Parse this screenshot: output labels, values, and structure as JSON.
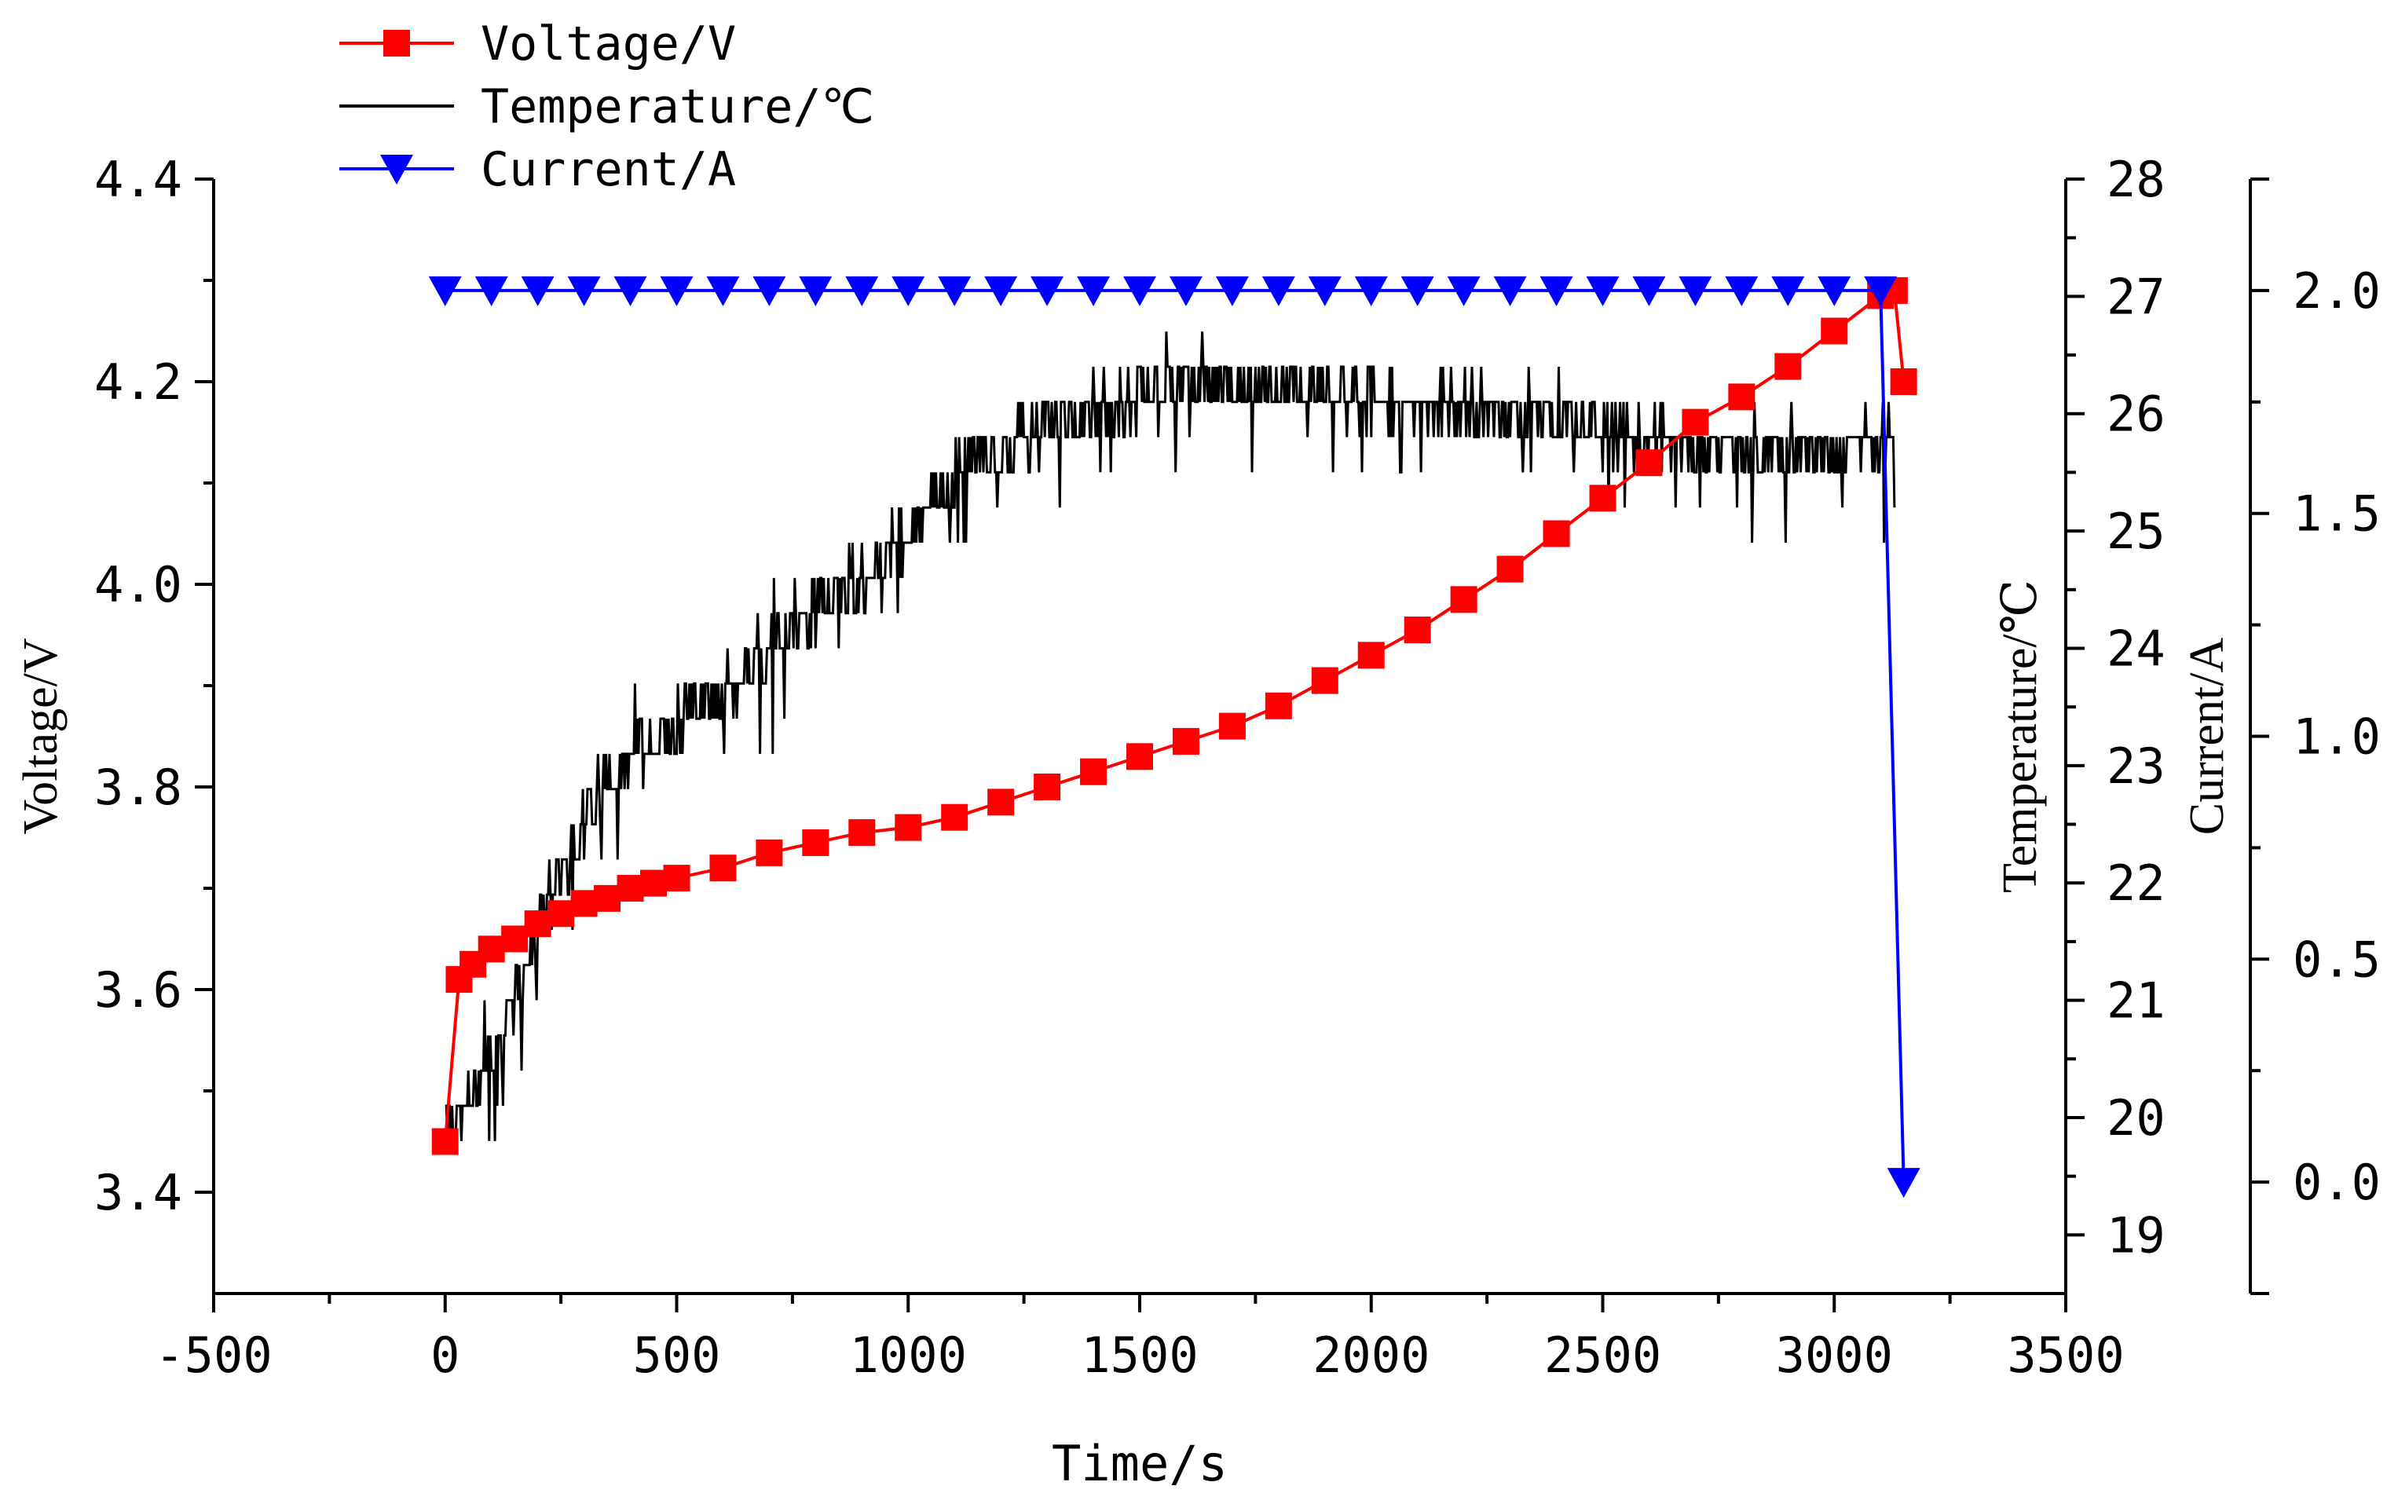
{
  "chart_data": {
    "type": "line",
    "title": "",
    "xlabel": "Time/s",
    "xlim": [
      -500,
      3500
    ],
    "x_ticks": [
      -500,
      0,
      500,
      1000,
      1500,
      2000,
      2500,
      3000,
      3500
    ],
    "x_tick_labels": [
      "-500",
      "0",
      "500",
      "1000",
      "1500",
      "2000",
      "2500",
      "3000",
      "3500"
    ],
    "axes": {
      "voltage": {
        "label": "Voltage/V",
        "side": "left",
        "lim": [
          3.3,
          4.4
        ],
        "ticks": [
          3.4,
          3.6,
          3.8,
          4.0,
          4.2,
          4.4
        ],
        "tick_labels": [
          "3.4",
          "3.6",
          "3.8",
          "4.0",
          "4.2",
          "4.4"
        ]
      },
      "temperature": {
        "label": "Temperature/℃",
        "side": "right-inner",
        "lim": [
          18.5,
          28
        ],
        "ticks": [
          19,
          20,
          21,
          22,
          23,
          24,
          25,
          26,
          27,
          28
        ],
        "tick_labels": [
          "19",
          "20",
          "21",
          "22",
          "23",
          "24",
          "25",
          "26",
          "27",
          "28"
        ]
      },
      "current": {
        "label": "Current/A",
        "side": "right-outer",
        "lim": [
          -0.25,
          2.25
        ],
        "ticks": [
          0.0,
          0.5,
          1.0,
          1.5,
          2.0
        ],
        "tick_labels": [
          "0.0",
          "0.5",
          "1.0",
          "1.5",
          "2.0"
        ]
      }
    },
    "legend": {
      "position": "top-left",
      "entries": [
        "Voltage/V",
        "Temperature/℃",
        "Current/A"
      ]
    },
    "series": [
      {
        "name": "Voltage/V",
        "axis": "voltage",
        "color": "#ff0000",
        "marker": "square",
        "x": [
          0,
          30,
          60,
          100,
          150,
          200,
          250,
          300,
          350,
          400,
          450,
          500,
          600,
          700,
          800,
          900,
          1000,
          1100,
          1200,
          1300,
          1400,
          1500,
          1600,
          1700,
          1800,
          1900,
          2000,
          2100,
          2200,
          2300,
          2400,
          2500,
          2600,
          2700,
          2800,
          2900,
          3000,
          3100,
          3130,
          3150
        ],
        "values": [
          3.45,
          3.61,
          3.625,
          3.64,
          3.65,
          3.665,
          3.675,
          3.685,
          3.69,
          3.7,
          3.705,
          3.71,
          3.72,
          3.735,
          3.745,
          3.755,
          3.76,
          3.77,
          3.785,
          3.8,
          3.815,
          3.83,
          3.845,
          3.86,
          3.88,
          3.905,
          3.93,
          3.955,
          3.985,
          4.015,
          4.05,
          4.085,
          4.12,
          4.16,
          4.185,
          4.215,
          4.25,
          4.285,
          4.29,
          4.2
        ]
      },
      {
        "name": "Temperature/℃",
        "axis": "temperature",
        "color": "#000000",
        "marker": "none",
        "x": [
          0,
          30,
          60,
          100,
          150,
          200,
          250,
          300,
          350,
          400,
          450,
          500,
          550,
          600,
          650,
          700,
          750,
          800,
          850,
          900,
          950,
          1000,
          1050,
          1100,
          1150,
          1200,
          1250,
          1300,
          1350,
          1400,
          1450,
          1500,
          1550,
          1600,
          1650,
          1700,
          1750,
          1800,
          1850,
          1900,
          1950,
          2000,
          2050,
          2100,
          2150,
          2200,
          2250,
          2300,
          2350,
          2400,
          2450,
          2500,
          2550,
          2600,
          2650,
          2700,
          2750,
          2800,
          2850,
          2900,
          2950,
          3000,
          3050,
          3100,
          3130
        ],
        "values": [
          20.1,
          20.0,
          20.2,
          20.5,
          21.0,
          21.6,
          22.1,
          22.5,
          22.9,
          23.1,
          23.2,
          23.4,
          23.5,
          23.6,
          23.8,
          24.0,
          24.2,
          24.3,
          24.5,
          24.6,
          24.8,
          25.0,
          25.3,
          25.5,
          25.6,
          25.7,
          25.8,
          25.9,
          26.0,
          26.05,
          26.1,
          26.15,
          26.2,
          26.2,
          26.25,
          26.2,
          26.2,
          26.2,
          26.15,
          26.2,
          26.2,
          26.15,
          26.1,
          26.1,
          26.1,
          26.05,
          26.0,
          26.0,
          25.95,
          25.9,
          25.85,
          25.85,
          25.8,
          25.8,
          25.75,
          25.7,
          25.7,
          25.7,
          25.7,
          25.7,
          25.7,
          25.7,
          25.75,
          25.8,
          25.8
        ]
      },
      {
        "name": "Current/A",
        "axis": "current",
        "color": "#0000ff",
        "marker": "triangle-down",
        "x": [
          0,
          100,
          200,
          300,
          400,
          500,
          600,
          700,
          800,
          900,
          1000,
          1100,
          1200,
          1300,
          1400,
          1500,
          1600,
          1700,
          1800,
          1900,
          2000,
          2100,
          2200,
          2300,
          2400,
          2500,
          2600,
          2700,
          2800,
          2900,
          3000,
          3100,
          3150
        ],
        "values": [
          2.0,
          2.0,
          2.0,
          2.0,
          2.0,
          2.0,
          2.0,
          2.0,
          2.0,
          2.0,
          2.0,
          2.0,
          2.0,
          2.0,
          2.0,
          2.0,
          2.0,
          2.0,
          2.0,
          2.0,
          2.0,
          2.0,
          2.0,
          2.0,
          2.0,
          2.0,
          2.0,
          2.0,
          2.0,
          2.0,
          2.0,
          2.0,
          0.0
        ]
      }
    ]
  }
}
